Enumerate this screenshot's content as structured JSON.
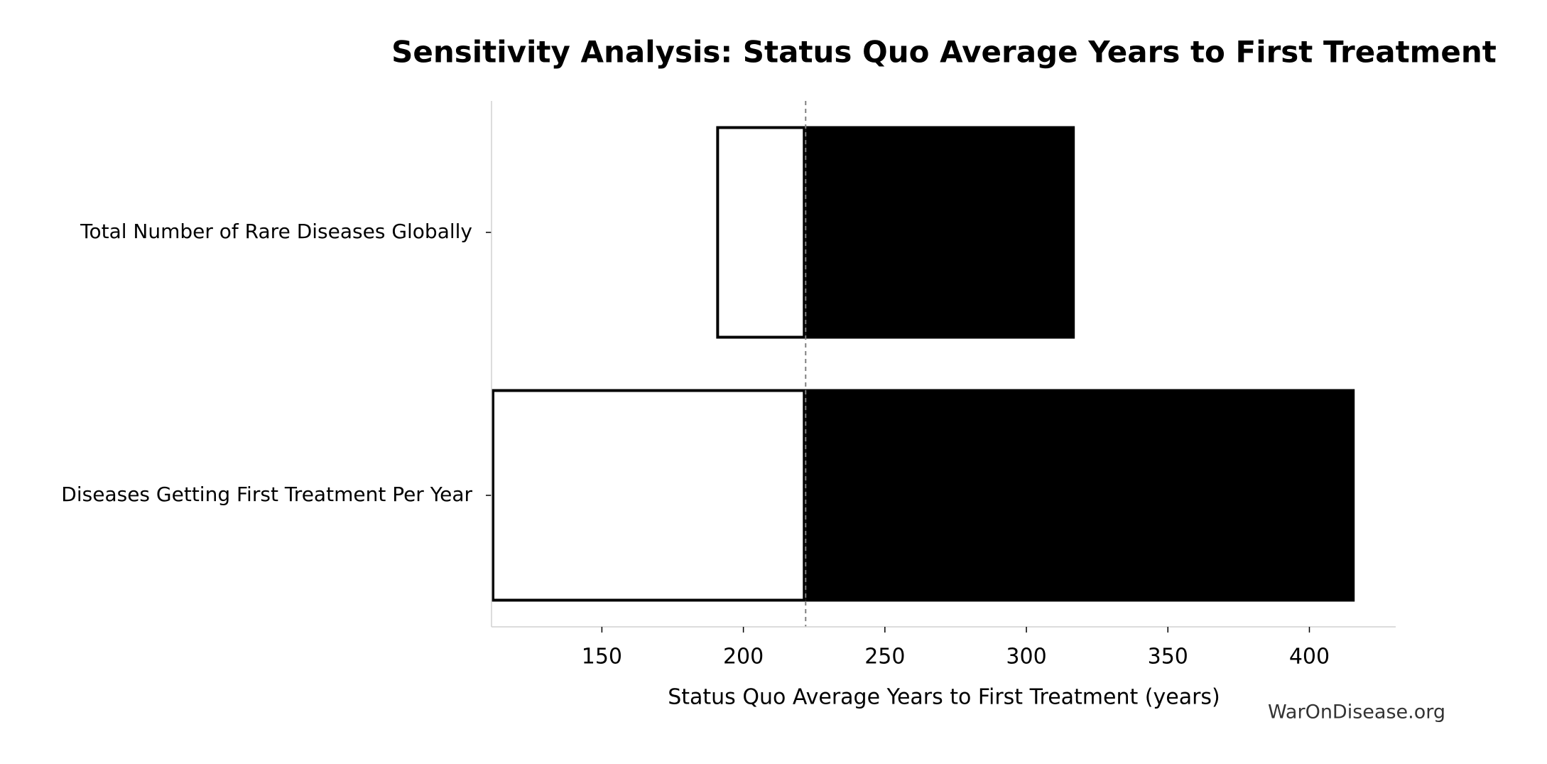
{
  "chart_data": {
    "type": "tornado",
    "title": "Sensitivity Analysis: Status Quo Average Years to First Treatment",
    "xlabel": "Status Quo Average Years to First Treatment (years)",
    "watermark": "WarOnDisease.org",
    "categories": [
      "Total Number of Rare Diseases Globally",
      "Diseases Getting First Treatment Per Year"
    ],
    "baseline": 222,
    "series": [
      {
        "color": "#ffffff",
        "edgecolor": "#000000",
        "values": [
          190.4,
          111
        ]
      },
      {
        "color": "#000000",
        "values": [
          317.1,
          416
        ]
      }
    ],
    "xlim": [
      111,
      430.5
    ],
    "xticks": [
      150,
      200,
      250,
      300,
      350,
      400
    ],
    "grid": false
  }
}
